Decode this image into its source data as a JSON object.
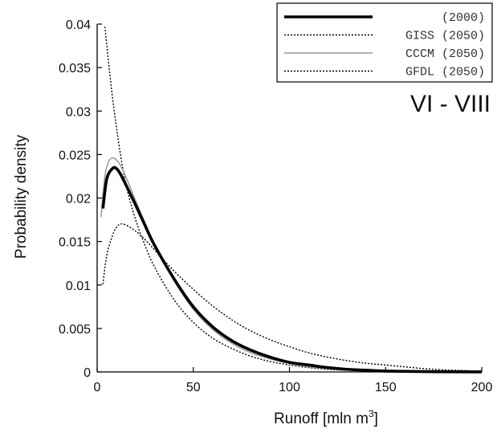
{
  "chart_data": {
    "type": "line",
    "title": "",
    "annotation": "VI - VIII",
    "xlabel": "Runoff [mln m",
    "xlabel_sup": "3",
    "xlabel_close": "]",
    "ylabel": "Probability density",
    "xlim": [
      0,
      200
    ],
    "ylim": [
      0,
      0.04
    ],
    "x_ticks": [
      0,
      50,
      100,
      150,
      200
    ],
    "x_tick_labels": [
      "0",
      "50",
      "100",
      "150",
      "200"
    ],
    "y_ticks": [
      0,
      0.005,
      0.01,
      0.015,
      0.02,
      0.025,
      0.03,
      0.035,
      0.04
    ],
    "y_tick_labels": [
      "0",
      "0.005",
      "0.01",
      "0.015",
      "0.02",
      "0.025",
      "0.03",
      "0.035",
      "0.04"
    ],
    "grid": false,
    "legend_position": "top-right",
    "series": [
      {
        "name": "(2000)",
        "color": "#000000",
        "style": "solid-thick",
        "x": [
          3,
          5,
          8,
          10,
          12,
          15,
          20,
          25,
          30,
          40,
          50,
          60,
          70,
          80,
          90,
          100,
          110,
          120,
          130,
          140,
          150,
          175,
          200
        ],
        "y": [
          0.0188,
          0.0222,
          0.0234,
          0.0234,
          0.0228,
          0.0215,
          0.0192,
          0.0168,
          0.0145,
          0.0107,
          0.0075,
          0.0052,
          0.0036,
          0.0025,
          0.0017,
          0.0011,
          0.0008,
          0.0005,
          0.0003,
          0.0002,
          0.0001,
          3e-05,
          1e-05
        ]
      },
      {
        "name": "GISS (2050)",
        "color": "#000000",
        "style": "dotted",
        "x": [
          4,
          6,
          8,
          10,
          12,
          15,
          20,
          25,
          30,
          40,
          50,
          60,
          70,
          80,
          90,
          100,
          110,
          120,
          130,
          140
        ],
        "y": [
          0.0397,
          0.0355,
          0.0315,
          0.0282,
          0.0252,
          0.0215,
          0.0175,
          0.0145,
          0.012,
          0.0083,
          0.0057,
          0.0039,
          0.0027,
          0.0018,
          0.0012,
          0.0008,
          0.0005,
          0.0003,
          0.0002,
          0.0001
        ]
      },
      {
        "name": "CCCM (2050)",
        "color": "#999999",
        "style": "solid-thin",
        "x": [
          2,
          4,
          6,
          8,
          10,
          12,
          15,
          20,
          25,
          30,
          40,
          50,
          60,
          70,
          80,
          90,
          100,
          110,
          120,
          130,
          140,
          150
        ],
        "y": [
          0.0178,
          0.0225,
          0.0242,
          0.0246,
          0.0244,
          0.0238,
          0.0224,
          0.0197,
          0.0171,
          0.0146,
          0.0105,
          0.0072,
          0.0049,
          0.0033,
          0.0022,
          0.0015,
          0.001,
          0.0006,
          0.0004,
          0.0003,
          0.0002,
          0.0001
        ]
      },
      {
        "name": "GFDL (2050)",
        "color": "#000000",
        "style": "dotted",
        "x": [
          3,
          5,
          8,
          10,
          12,
          15,
          20,
          25,
          30,
          40,
          50,
          60,
          70,
          80,
          90,
          100,
          110,
          120,
          130,
          140,
          150,
          175,
          200
        ],
        "y": [
          0.0101,
          0.0134,
          0.0157,
          0.0166,
          0.017,
          0.0169,
          0.0162,
          0.0152,
          0.014,
          0.0116,
          0.0095,
          0.0076,
          0.006,
          0.0047,
          0.0037,
          0.0029,
          0.0022,
          0.0017,
          0.0013,
          0.001,
          0.0008,
          0.0003,
          0.0001
        ]
      }
    ]
  }
}
